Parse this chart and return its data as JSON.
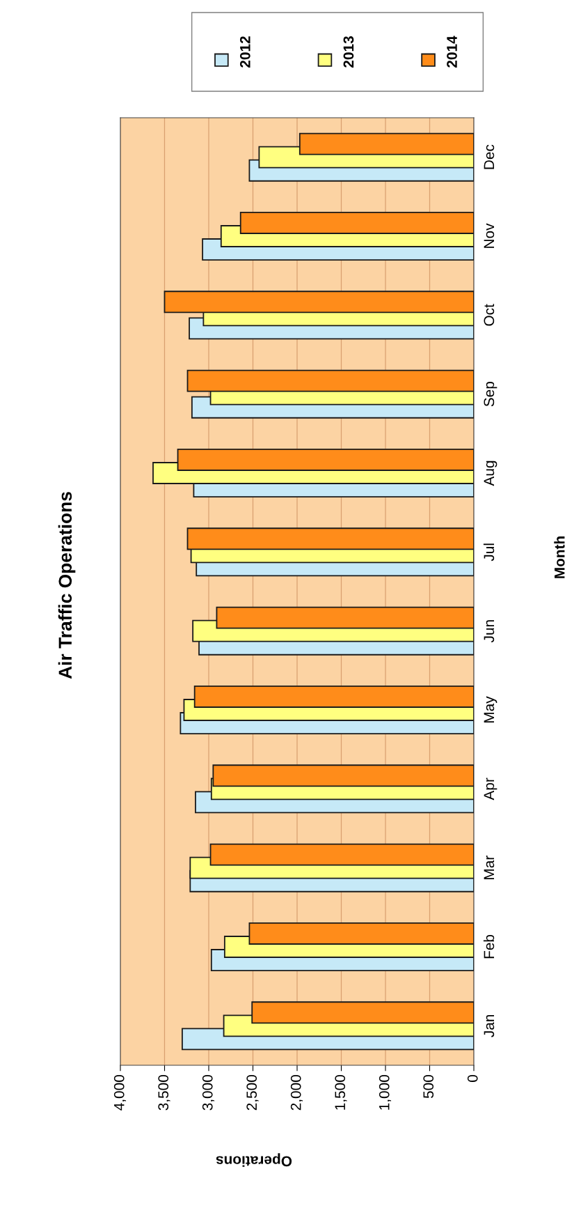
{
  "chart_data": {
    "type": "bar",
    "orientation": "horizontal",
    "title": "Air Traffic Operations",
    "xlabel": "Operations",
    "ylabel": "Month",
    "categories": [
      "Dec",
      "Nov",
      "Oct",
      "Sep",
      "Aug",
      "Jul",
      "Jun",
      "May",
      "Apr",
      "Mar",
      "Feb",
      "Jan"
    ],
    "series": [
      {
        "name": "2012",
        "color": "#c6e9f7",
        "values": [
          2540,
          3070,
          3220,
          3190,
          3170,
          3140,
          3110,
          3320,
          3150,
          3210,
          2970,
          3300
        ]
      },
      {
        "name": "2013",
        "color": "#ffff80",
        "values": [
          2430,
          2860,
          3060,
          2980,
          3630,
          3200,
          3180,
          3280,
          2970,
          3210,
          2820,
          2830
        ]
      },
      {
        "name": "2014",
        "color": "#ff8c1a",
        "values": [
          1970,
          2640,
          3500,
          3240,
          3350,
          3240,
          2910,
          3160,
          2950,
          2980,
          2540,
          2510
        ]
      }
    ],
    "xlim": [
      4000,
      0
    ],
    "xticks": [
      {
        "value": 4000,
        "label": "4,000"
      },
      {
        "value": 3500,
        "label": "3,500"
      },
      {
        "value": 3000,
        "label": "3,000"
      },
      {
        "value": 2500,
        "label": "2,500"
      },
      {
        "value": 2000,
        "label": "2,000"
      },
      {
        "value": 1500,
        "label": "1,500"
      },
      {
        "value": 1000,
        "label": "1,000"
      },
      500,
      0
    ],
    "grid": "x",
    "legend": "top right"
  }
}
